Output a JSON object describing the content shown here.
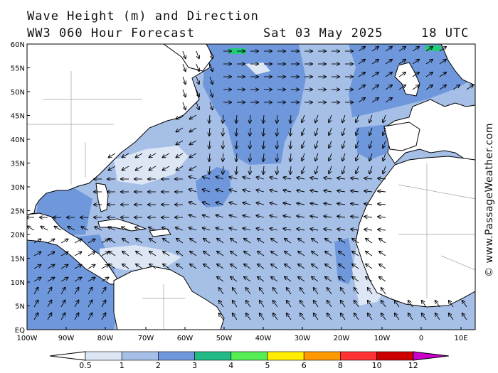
{
  "header": {
    "title": "Wave Height (m) and Direction",
    "model": "WW3 060 Hour Forecast",
    "date": "Sat 03 May 2025",
    "time": "18 UTC"
  },
  "map": {
    "lat_labels": [
      "60N",
      "55N",
      "50N",
      "45N",
      "40N",
      "35N",
      "30N",
      "25N",
      "20N",
      "15N",
      "10N",
      "5N",
      "EQ"
    ],
    "lon_labels": [
      "100W",
      "90W",
      "80W",
      "70W",
      "60W",
      "50W",
      "40W",
      "30W",
      "20W",
      "10W",
      "0",
      "10E"
    ],
    "colors": {
      "land": "#ffffff",
      "ocean_default": "#a6bfe6",
      "band_lt": "#dde6f5",
      "band_mid": "#a6bfe6",
      "band_dark": "#6f98dc",
      "green_patch": "#22cc77",
      "coast": "#000000",
      "border": "#a0a0a0"
    }
  },
  "legend": {
    "labels": [
      "0.5",
      "1",
      "2",
      "3",
      "4",
      "5",
      "6",
      "8",
      "10",
      "12"
    ],
    "colors": [
      "#dde6f5",
      "#a6bfe6",
      "#6f98dc",
      "#22bb88",
      "#55ee55",
      "#ffee00",
      "#ff9900",
      "#ff3333",
      "#cc0000",
      "#cc00cc"
    ]
  },
  "copyright": "© www.PassageWeather.com"
}
